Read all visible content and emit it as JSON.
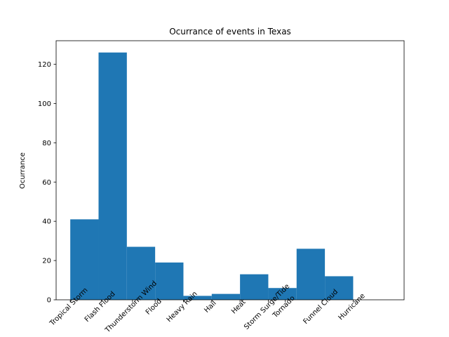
{
  "chart_data": {
    "type": "bar",
    "title": "Ocurrance of events in Texas",
    "xlabel": "",
    "ylabel": "Ocurrance",
    "ylim": [
      0,
      132
    ],
    "yticks": [
      0,
      20,
      40,
      60,
      80,
      100,
      120
    ],
    "x_range": [
      -0.5,
      11.8
    ],
    "bars": [
      {
        "x_start": 0,
        "x_end": 1,
        "value": 41
      },
      {
        "x_start": 1,
        "x_end": 2,
        "value": 126
      },
      {
        "x_start": 2,
        "x_end": 3,
        "value": 27
      },
      {
        "x_start": 3,
        "x_end": 4,
        "value": 19
      },
      {
        "x_start": 4,
        "x_end": 5,
        "value": 2
      },
      {
        "x_start": 5,
        "x_end": 6,
        "value": 3
      },
      {
        "x_start": 6,
        "x_end": 7,
        "value": 13
      },
      {
        "x_start": 7,
        "x_end": 8,
        "value": 6
      },
      {
        "x_start": 8,
        "x_end": 9,
        "value": 26
      },
      {
        "x_start": 9,
        "x_end": 10,
        "value": 12
      }
    ],
    "categories": [
      {
        "label": "Tropical Storm",
        "pos": 0
      },
      {
        "label": "Flash Flood",
        "pos": 1.1
      },
      {
        "label": "Thunderstorm Wind",
        "pos": 2.2
      },
      {
        "label": "Flood",
        "pos": 3.0
      },
      {
        "label": "Heavy Rain",
        "pos": 4.0
      },
      {
        "label": "Hail",
        "pos": 5.0
      },
      {
        "label": "Heat",
        "pos": 6.0
      },
      {
        "label": "Storm Surge/Tide",
        "pos": 7.0
      },
      {
        "label": "Tornado",
        "pos": 7.6
      },
      {
        "label": "Funnel Cloud",
        "pos": 8.9
      },
      {
        "label": "Hurricane",
        "pos": 10.0
      }
    ],
    "bar_color": "#1f77b4"
  }
}
